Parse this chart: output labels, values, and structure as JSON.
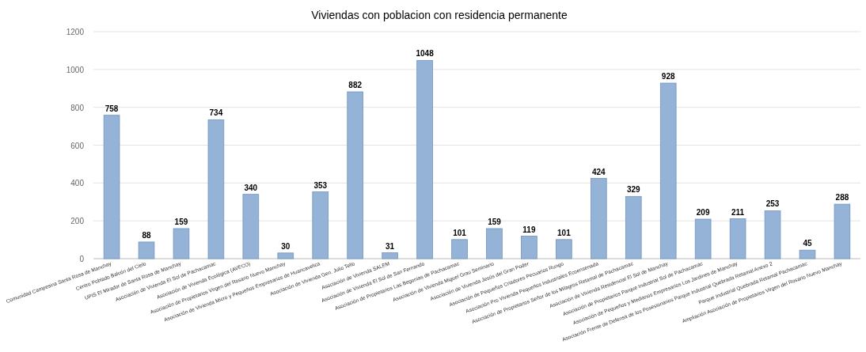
{
  "chart_data": {
    "type": "bar",
    "title": "Viviendas con poblacion con residencia permanente",
    "categories": [
      "Comunidad Campesina Santa Rosa de Manchay",
      "Centro Poblado Balcón del Cielo",
      "UPIS El Mirador de Santa Rosa de Manchay",
      "Asociación de Vivienda El Sol de Pachacamac",
      "Asociación de Vivienda Ecológica (AVECO)",
      "Asociación de Propietarios Virgen del Rosario Nuevo Manchay",
      "Asociación de Vivienda Micro y Pequeños Empresarios de Huancavelica",
      "Asociación de Vivienda Gen. Julio Tello",
      "Asociación de Vivienda SALEM",
      "Asociación de Vivienda El Sol de San Fernando",
      "Asociación de Propietarios Las Begonias de Pachacamac",
      "Asociación de Vivienda Miguel Grau Seminario",
      "Asociación de Vivienda Jesús del Gran Poder",
      "Asociación de Pequeños Criadores Pecuarios Rungo",
      "Asociación Pro Vivienda Pequeños Industriales Ecoensenada",
      "Asociación de Propietarios Señor de los Milagros Retamal de Pachacamac",
      "Asociación de Vivienda Residencial El Sol de Manchay",
      "Asociación de Propietarios Parque Industrial Sol de Pachacamac",
      "Asociación de Pequeños y Medianos Empresarios Los Jardines de Manchay",
      "Asociación Frente de Defensa de los Posesionarios Parque Industrial Quebrada Retamal Anexo 2",
      "Parque Industrial Quebrada Retamal Pachacamac",
      "Ampliación Asociación de Propietarios Virgen del Rosario Nuevo Manchay"
    ],
    "values": [
      758,
      88,
      159,
      734,
      340,
      30,
      353,
      882,
      31,
      1048,
      101,
      159,
      119,
      101,
      424,
      329,
      928,
      209,
      211,
      253,
      45,
      288
    ],
    "color": "#95b3d7",
    "ylim": [
      0,
      1200
    ],
    "yticks": [
      0,
      200,
      400,
      600,
      800,
      1000,
      1200
    ],
    "grid": "y",
    "data_labels": true
  }
}
